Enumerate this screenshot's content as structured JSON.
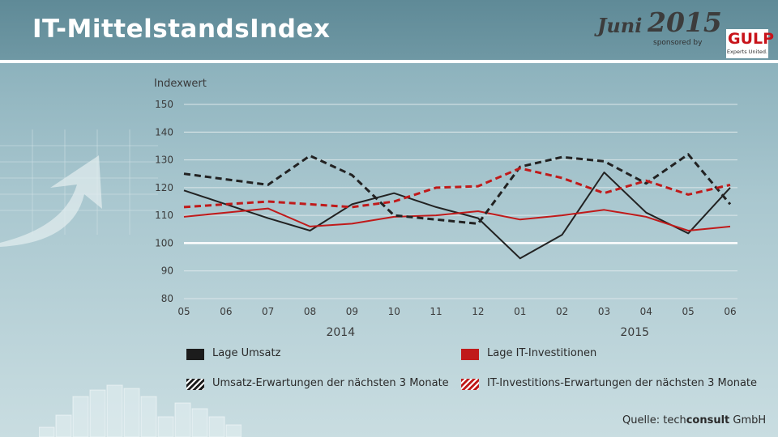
{
  "header": {
    "title": "IT-MittelstandsIndex",
    "date_month": "Juni",
    "date_year": "2015",
    "sponsored_by": "sponsored by",
    "logo_text": "GULP",
    "logo_tagline": "Experts United."
  },
  "source": {
    "prefix": "Quelle:",
    "org_light": "tech",
    "org_bold": "consult",
    "org_suffix": "GmbH"
  },
  "chart_data": {
    "type": "line",
    "ylabel": "Indexwert",
    "ylim": [
      80,
      150
    ],
    "yticks": [
      150,
      140,
      130,
      120,
      110,
      100,
      90,
      80
    ],
    "baseline": 100,
    "x": [
      "05",
      "06",
      "07",
      "08",
      "09",
      "10",
      "11",
      "12",
      "01",
      "02",
      "03",
      "04",
      "05",
      "06"
    ],
    "year_labels": [
      {
        "label": "2014",
        "center_index": 4.5
      },
      {
        "label": "2015",
        "center_index": 11.5
      }
    ],
    "grid": true,
    "colors": {
      "black": "#222222",
      "red": "#c01a1a",
      "baseline": "#ffffff",
      "grid": "#dbe6e9"
    },
    "series": [
      {
        "name": "Lage Umsatz",
        "color": "#222222",
        "dashed": false,
        "values": [
          119,
          114,
          109,
          104.5,
          114,
          118,
          113,
          109,
          94.5,
          103,
          125.5,
          111,
          103.5,
          120
        ]
      },
      {
        "name": "Lage IT-Investitionen",
        "color": "#c01a1a",
        "dashed": false,
        "values": [
          109.5,
          111,
          112.5,
          106,
          107,
          109.5,
          110,
          111.5,
          108.5,
          110,
          112,
          109.5,
          104.5,
          106
        ]
      },
      {
        "name": "Umsatz-Erwartungen der nächsten 3 Monate",
        "color": "#222222",
        "dashed": true,
        "values": [
          125,
          123,
          121,
          131.5,
          124.5,
          110,
          108.5,
          107,
          127.5,
          131,
          129.5,
          121.5,
          132,
          114
        ]
      },
      {
        "name": "IT-Investitions-Erwartungen der nächsten 3 Monate",
        "color": "#c01a1a",
        "dashed": true,
        "values": [
          113,
          114,
          115,
          114,
          113,
          115,
          120,
          120.5,
          127,
          123.5,
          118,
          122.5,
          117.5,
          121
        ]
      }
    ]
  }
}
